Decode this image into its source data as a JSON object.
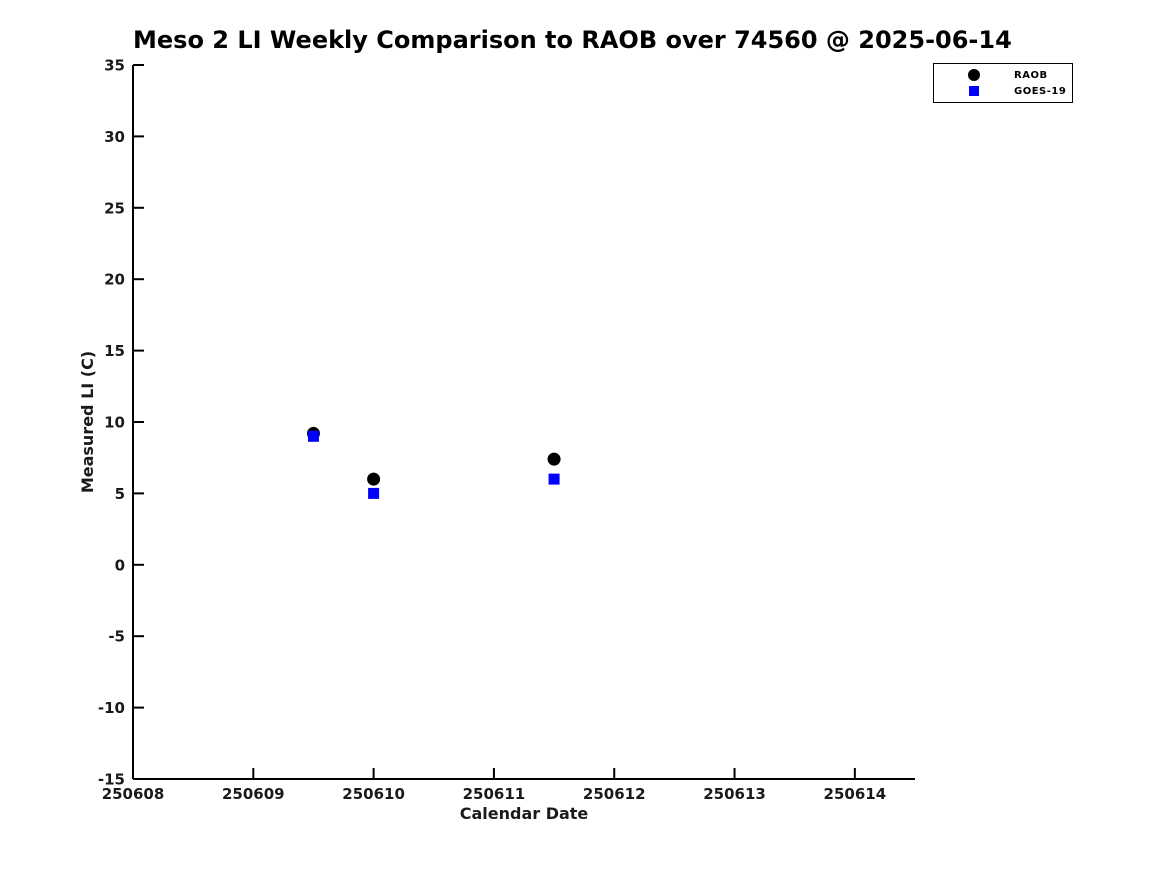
{
  "title": "Meso 2 LI Weekly Comparison to RAOB over 74560 @ 2025-06-14",
  "chart_data": {
    "type": "scatter",
    "title": "Meso 2 LI Weekly Comparison to RAOB over 74560 @ 2025-06-14",
    "xlabel": "Calendar Date",
    "ylabel": "Measured LI (C)",
    "xlim": [
      250608,
      250614.5
    ],
    "ylim": [
      -15,
      35
    ],
    "xticks": [
      "250608",
      "250609",
      "250610",
      "250611",
      "250612",
      "250613",
      "250614"
    ],
    "yticks": [
      "35",
      "30",
      "25",
      "20",
      "15",
      "10",
      "5",
      "0",
      "-5",
      "-10",
      "-15"
    ],
    "grid": false,
    "legend_position": "upper right",
    "series": [
      {
        "name": "RAOB",
        "marker": "circle",
        "color": "#000000",
        "points": [
          [
            250609.5,
            9.2
          ],
          [
            250610.0,
            6.0
          ],
          [
            250611.5,
            7.4
          ]
        ]
      },
      {
        "name": "GOES-19",
        "marker": "square",
        "color": "#0000ff",
        "points": [
          [
            250609.5,
            9.0
          ],
          [
            250610.0,
            5.0
          ],
          [
            250611.5,
            6.0
          ]
        ]
      }
    ]
  },
  "colors": {
    "background": "#ffffff",
    "axis": "#000000",
    "text": "#1a1a1a",
    "raob": "#000000",
    "goes19": "#0000ff"
  }
}
